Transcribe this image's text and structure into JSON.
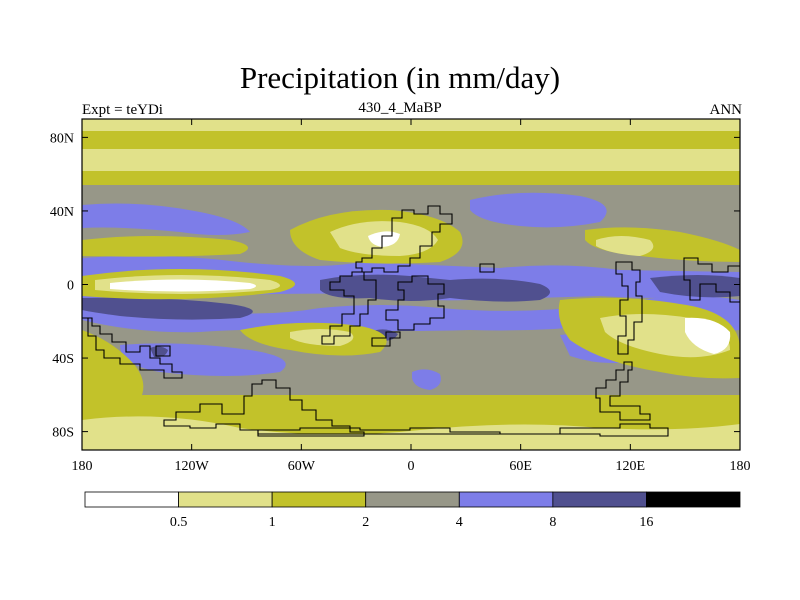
{
  "chart_data": {
    "type": "heatmap",
    "title": "Precipitation (in mm/day)",
    "left_string": "Expt = teYDi",
    "center_string": "430_4_MaBP",
    "right_string": "ANN",
    "x_range": [
      -180,
      180
    ],
    "y_range": [
      -90,
      90
    ],
    "x_ticks": [
      {
        "value": -180,
        "label": "180"
      },
      {
        "value": -120,
        "label": "120W"
      },
      {
        "value": -60,
        "label": "60W"
      },
      {
        "value": 0,
        "label": "0"
      },
      {
        "value": 60,
        "label": "60E"
      },
      {
        "value": 120,
        "label": "120E"
      },
      {
        "value": 180,
        "label": "180"
      }
    ],
    "y_ticks": [
      {
        "value": 80,
        "label": "80N"
      },
      {
        "value": 40,
        "label": "40N"
      },
      {
        "value": 0,
        "label": "0"
      },
      {
        "value": -40,
        "label": "40S"
      },
      {
        "value": -80,
        "label": "80S"
      }
    ],
    "colorbar": {
      "levels": [
        "0.5",
        "1",
        "2",
        "4",
        "8",
        "16"
      ],
      "colors": [
        "#ffffff",
        "#e1e18a",
        "#c2c22a",
        "#979788",
        "#7d7de8",
        "#50508f",
        "#000000"
      ]
    }
  }
}
